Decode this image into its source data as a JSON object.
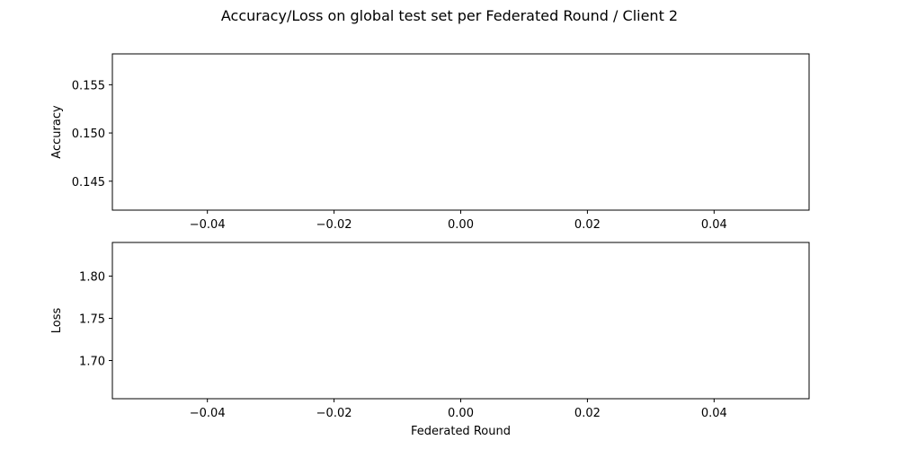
{
  "figure": {
    "title": "Accuracy/Loss on global test set per Federated Round / Client 2"
  },
  "chart_data": [
    {
      "type": "line",
      "title": "",
      "xlabel": "",
      "ylabel": "Accuracy",
      "xlim": [
        -0.055,
        0.055
      ],
      "ylim": [
        0.142,
        0.1582
      ],
      "x_ticks": [
        -0.04,
        -0.02,
        0.0,
        0.02,
        0.04
      ],
      "x_tick_labels": [
        "−0.04",
        "−0.02",
        "0.00",
        "0.02",
        "0.04"
      ],
      "y_ticks": [
        0.145,
        0.15,
        0.155
      ],
      "y_tick_labels": [
        "0.145",
        "0.150",
        "0.155"
      ],
      "grid": false,
      "series": []
    },
    {
      "type": "line",
      "title": "",
      "xlabel": "Federated Round",
      "ylabel": "Loss",
      "xlim": [
        -0.055,
        0.055
      ],
      "ylim": [
        1.6548,
        1.8398
      ],
      "x_ticks": [
        -0.04,
        -0.02,
        0.0,
        0.02,
        0.04
      ],
      "x_tick_labels": [
        "−0.04",
        "−0.02",
        "0.00",
        "0.02",
        "0.04"
      ],
      "y_ticks": [
        1.7,
        1.75,
        1.8
      ],
      "y_tick_labels": [
        "1.70",
        "1.75",
        "1.80"
      ],
      "grid": false,
      "series": []
    }
  ]
}
